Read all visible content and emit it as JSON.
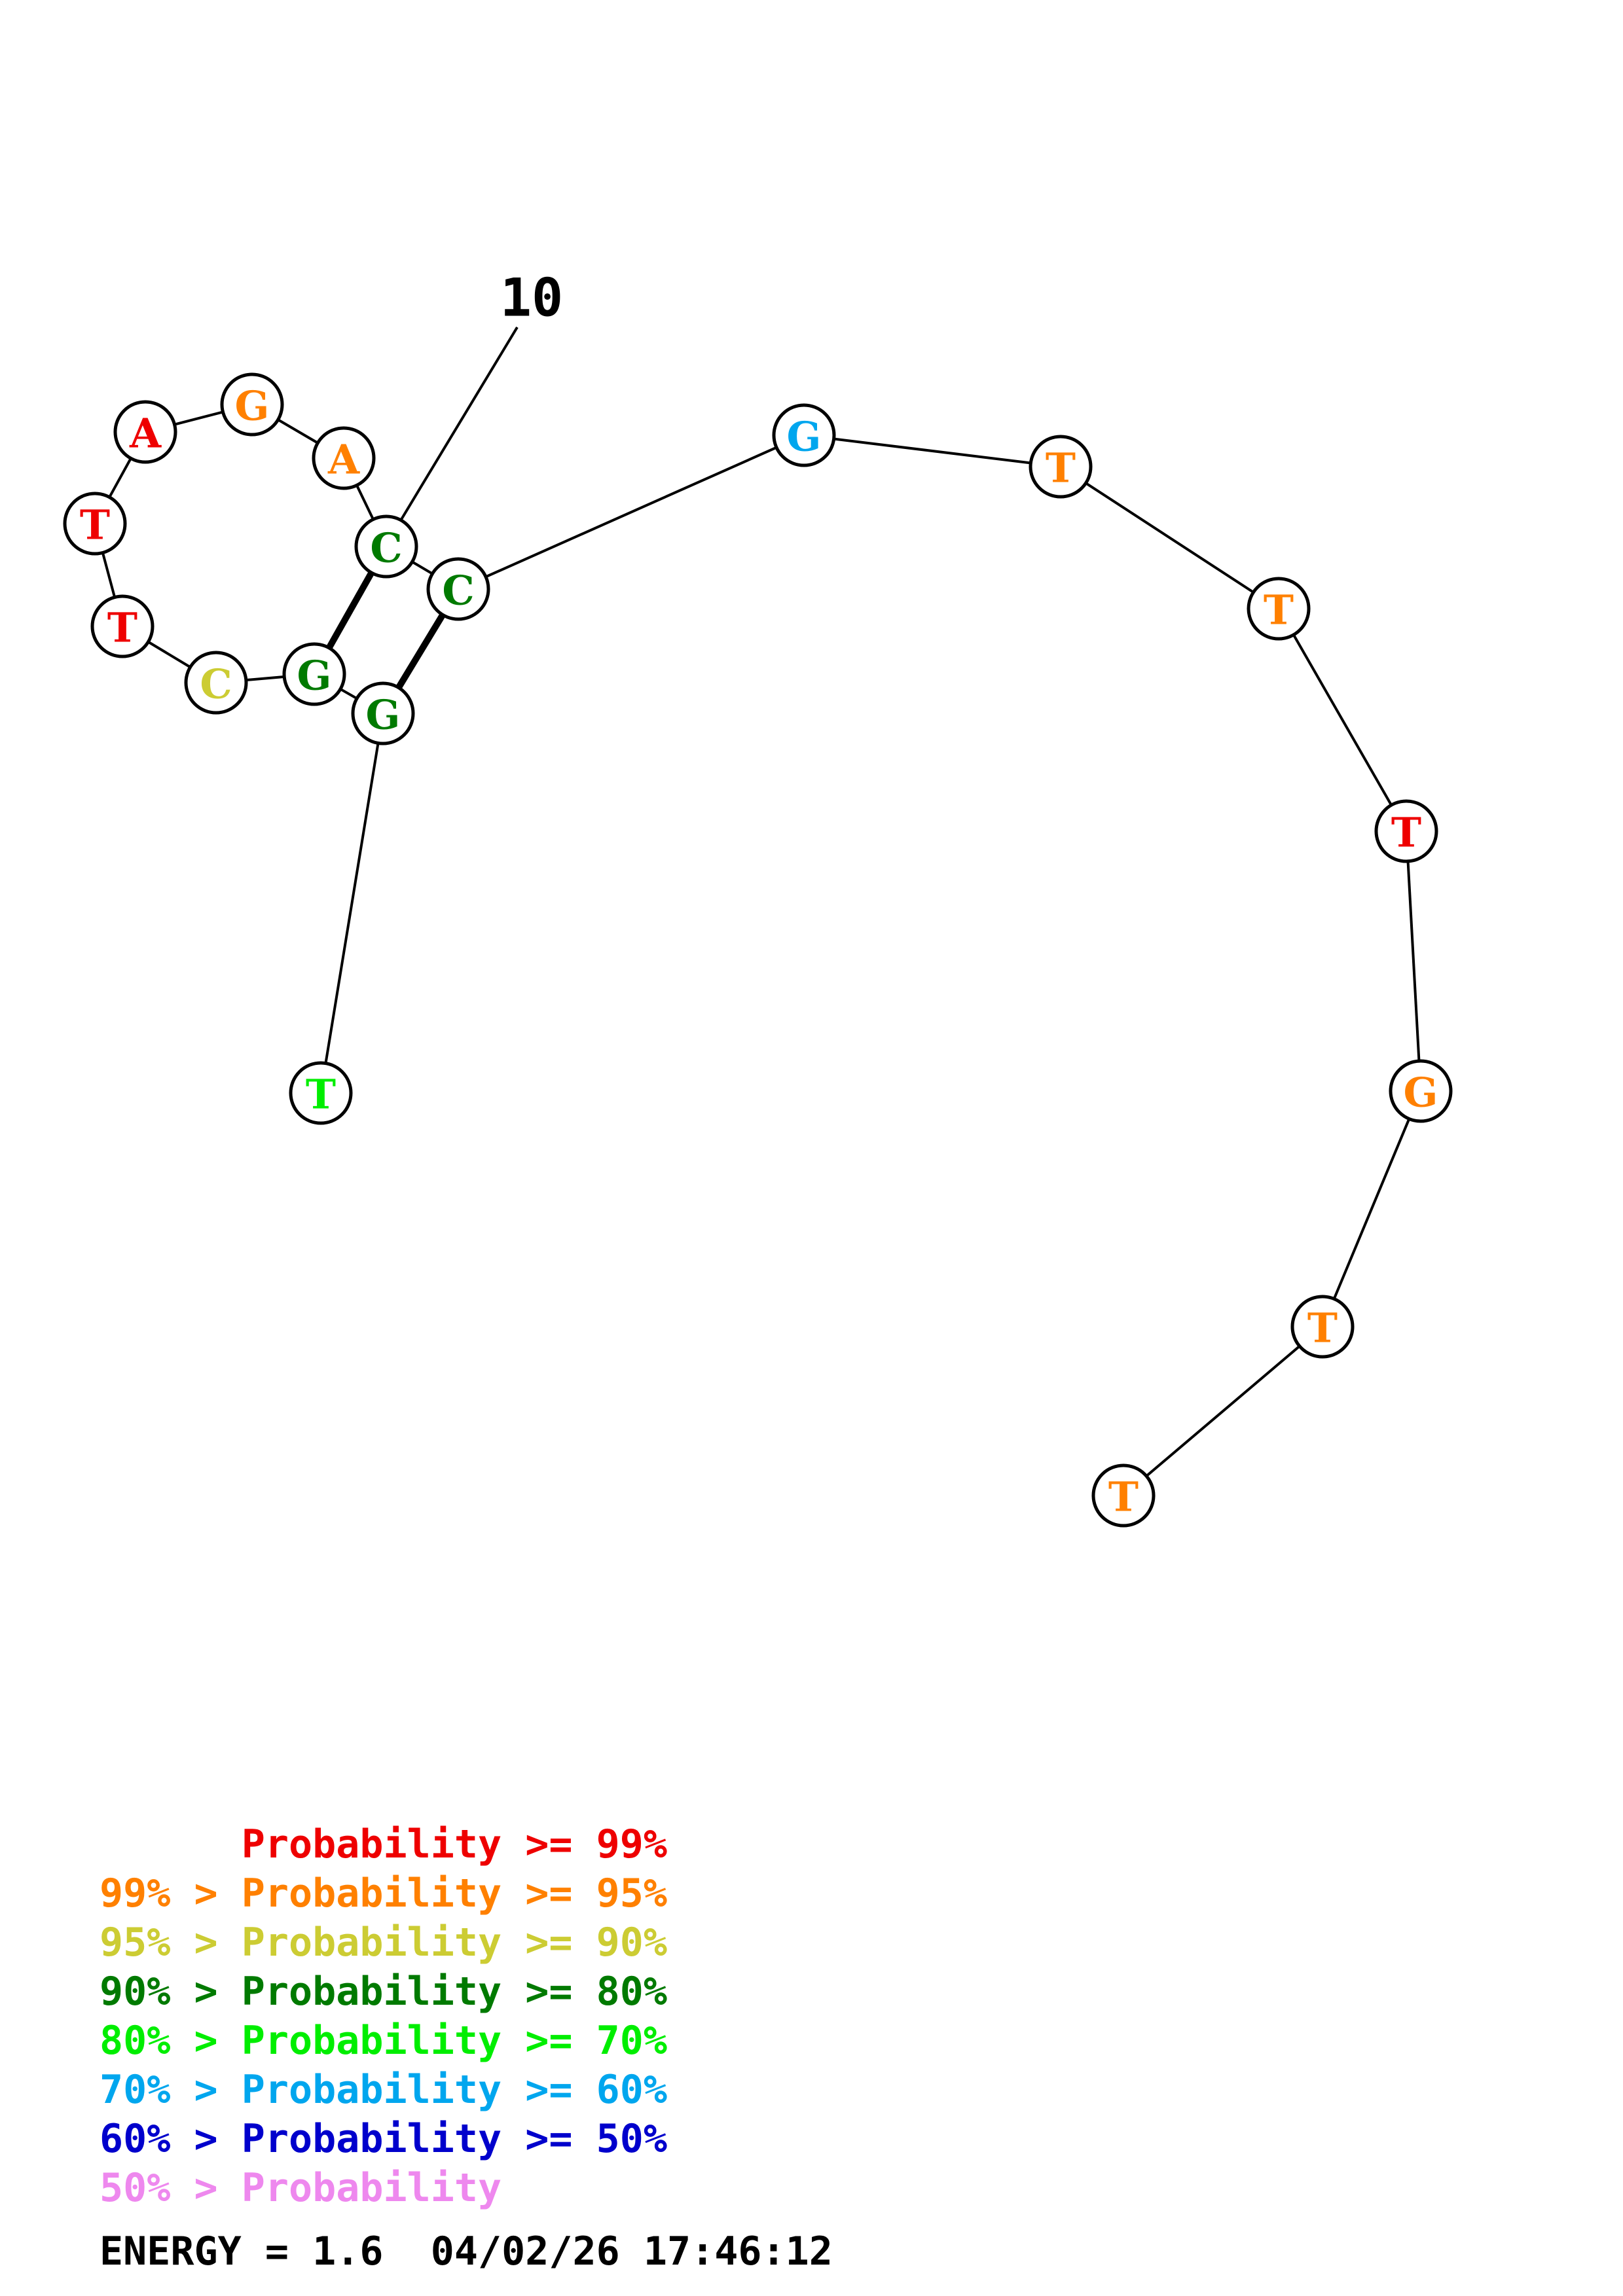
{
  "structure": {
    "index_label": "10",
    "nucleotides": [
      {
        "letter": "T",
        "color": "#00ee00"
      },
      {
        "letter": "G",
        "color": "#007a00"
      },
      {
        "letter": "G",
        "color": "#007a00"
      },
      {
        "letter": "C",
        "color": "#cccc33"
      },
      {
        "letter": "T",
        "color": "#ee0000"
      },
      {
        "letter": "T",
        "color": "#ee0000"
      },
      {
        "letter": "A",
        "color": "#ee0000"
      },
      {
        "letter": "G",
        "color": "#ff8000"
      },
      {
        "letter": "A",
        "color": "#ff8000"
      },
      {
        "letter": "C",
        "color": "#007a00"
      },
      {
        "letter": "C",
        "color": "#007a00"
      },
      {
        "letter": "G",
        "color": "#00a6ee"
      },
      {
        "letter": "T",
        "color": "#ff8000"
      },
      {
        "letter": "T",
        "color": "#ff8000"
      },
      {
        "letter": "T",
        "color": "#ee0000"
      },
      {
        "letter": "G",
        "color": "#ff8000"
      },
      {
        "letter": "T",
        "color": "#ff8000"
      },
      {
        "letter": "T",
        "color": "#ff8000"
      }
    ],
    "base_pairs": [
      [
        2,
        11
      ],
      [
        3,
        10
      ]
    ]
  },
  "legend": [
    {
      "text": "      Probability >= 99%",
      "color": "#ee0000"
    },
    {
      "text": "99% > Probability >= 95%",
      "color": "#ff8000"
    },
    {
      "text": "95% > Probability >= 90%",
      "color": "#cccc33"
    },
    {
      "text": "90% > Probability >= 80%",
      "color": "#007a00"
    },
    {
      "text": "80% > Probability >= 70%",
      "color": "#00ee00"
    },
    {
      "text": "70% > Probability >= 60%",
      "color": "#00a6ee"
    },
    {
      "text": "60% > Probability >= 50%",
      "color": "#0000cc"
    },
    {
      "text": "50% > Probability",
      "color": "#ee88ee"
    }
  ],
  "energy": "ENERGY = 1.6  04/02/26 17:46:12"
}
